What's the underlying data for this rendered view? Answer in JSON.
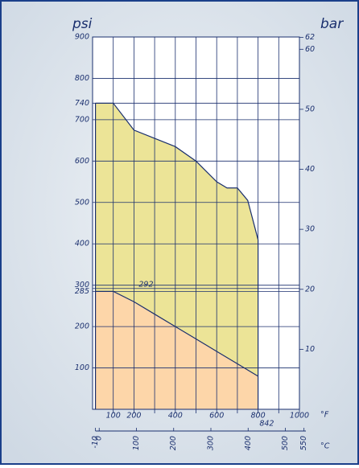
{
  "chart_data": {
    "type": "area",
    "ylabel": "psi",
    "y2label": "bar",
    "xlabel": "°F",
    "x2label": "°C",
    "ylim": [
      0,
      900
    ],
    "yticks": [
      100,
      200,
      285,
      300,
      400,
      500,
      600,
      700,
      740,
      800,
      900
    ],
    "y2lim": [
      0,
      62.05
    ],
    "y2ticks": [
      10,
      20,
      30,
      40,
      50,
      60,
      62
    ],
    "xlim": [
      0,
      1000
    ],
    "xticks": [
      100,
      200,
      400,
      600,
      800,
      1000
    ],
    "x_minor_ticks": [
      300,
      500,
      700,
      900
    ],
    "x2lim": [
      -17.8,
      537.8
    ],
    "x2ticks": [
      -10,
      0,
      100,
      200,
      300,
      400,
      500,
      550
    ],
    "annotations": {
      "y": 292,
      "x": 842
    },
    "grid": true,
    "series": [
      {
        "color": "#ece497",
        "x": [
          14,
          100,
          200,
          300,
          400,
          500,
          600,
          650,
          700,
          750,
          800
        ],
        "values": [
          740,
          740,
          675,
          655,
          635,
          600,
          550,
          535,
          535,
          505,
          410
        ]
      },
      {
        "color": "#fdd6a9",
        "x": [
          14,
          100,
          200,
          300,
          400,
          500,
          600,
          700,
          800
        ],
        "values": [
          285,
          285,
          260,
          230,
          200,
          170,
          140,
          110,
          80
        ]
      }
    ]
  }
}
